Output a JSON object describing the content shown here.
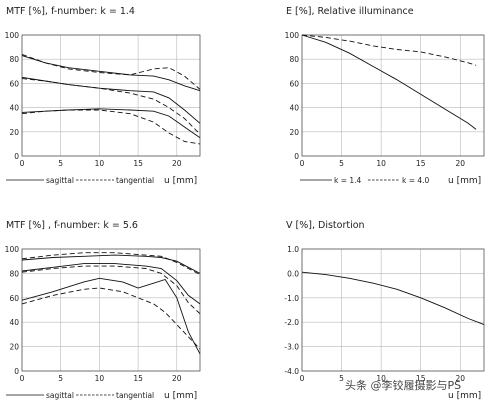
{
  "chart_data": [
    {
      "id": "mtf14",
      "type": "line",
      "title": "MTF [%], f-number: k = 1.4",
      "xlabel": "u [mm]",
      "xlim": [
        0,
        23
      ],
      "ylim": [
        0,
        100
      ],
      "xticks": [
        0,
        5,
        10,
        15,
        20
      ],
      "yticks": [
        0,
        20,
        40,
        60,
        80,
        100
      ],
      "legend": [
        {
          "label": "sagittal",
          "style": "solid"
        },
        {
          "label": "tangential",
          "style": "dashed"
        }
      ],
      "series": [
        {
          "style": "solid",
          "x": [
            0,
            3,
            6,
            10,
            14,
            17,
            19,
            21,
            23
          ],
          "y": [
            83,
            77,
            73,
            70,
            67,
            66,
            63,
            58,
            54
          ]
        },
        {
          "style": "dashed",
          "x": [
            0,
            3,
            6,
            10,
            14,
            17,
            19,
            21,
            23
          ],
          "y": [
            84,
            77,
            72,
            69,
            67,
            72,
            73,
            66,
            55
          ]
        },
        {
          "style": "solid",
          "x": [
            0,
            3,
            6,
            10,
            14,
            17,
            19,
            21,
            23
          ],
          "y": [
            65,
            62,
            59,
            56,
            54,
            53,
            48,
            38,
            27
          ]
        },
        {
          "style": "dashed",
          "x": [
            0,
            3,
            6,
            10,
            14,
            17,
            19,
            21,
            23
          ],
          "y": [
            64,
            62,
            59,
            56,
            52,
            47,
            40,
            31,
            18
          ]
        },
        {
          "style": "solid",
          "x": [
            0,
            3,
            6,
            10,
            14,
            17,
            19,
            21,
            23
          ],
          "y": [
            36,
            37,
            38,
            39,
            38,
            37,
            33,
            24,
            15
          ]
        },
        {
          "style": "dashed",
          "x": [
            0,
            3,
            6,
            10,
            14,
            17,
            19,
            21,
            23
          ],
          "y": [
            35,
            37,
            38,
            38,
            35,
            28,
            19,
            12,
            10
          ]
        }
      ]
    },
    {
      "id": "illum",
      "type": "line",
      "title": "E [%], Relative illuminance",
      "xlabel": "u [mm]",
      "xlim": [
        0,
        23
      ],
      "ylim": [
        0,
        100
      ],
      "xticks": [
        0,
        5,
        10,
        15,
        20
      ],
      "yticks": [
        0,
        20,
        40,
        60,
        80,
        100
      ],
      "legend": [
        {
          "label": "k = 1.4",
          "style": "solid"
        },
        {
          "label": "k = 4.0",
          "style": "dashed"
        }
      ],
      "series": [
        {
          "style": "solid",
          "x": [
            0,
            3,
            6,
            9,
            12,
            15,
            18,
            21,
            22
          ],
          "y": [
            100,
            94,
            85,
            74,
            63,
            51,
            39,
            27,
            22
          ]
        },
        {
          "style": "dashed",
          "x": [
            0,
            3,
            6,
            9,
            12,
            15,
            18,
            21,
            22
          ],
          "y": [
            100,
            98,
            95,
            91,
            88,
            86,
            82,
            77,
            75
          ]
        }
      ]
    },
    {
      "id": "mtf56",
      "type": "line",
      "title": "MTF [%] , f-number: k = 5.6",
      "xlabel": "u [mm]",
      "xlim": [
        0,
        23
      ],
      "ylim": [
        0,
        100
      ],
      "xticks": [
        0,
        5,
        10,
        15,
        20
      ],
      "yticks": [
        0,
        20,
        40,
        60,
        80,
        100
      ],
      "legend": [
        {
          "label": "sagittal",
          "style": "solid"
        },
        {
          "label": "tangential",
          "style": "dashed"
        }
      ],
      "series": [
        {
          "style": "solid",
          "x": [
            0,
            4,
            8,
            12,
            16,
            18,
            20,
            21.5,
            23
          ],
          "y": [
            91,
            93,
            94,
            95,
            94,
            93,
            90,
            85,
            80
          ]
        },
        {
          "style": "dashed",
          "x": [
            0,
            4,
            8,
            12,
            16,
            18,
            20,
            21.5,
            23
          ],
          "y": [
            92,
            95,
            97,
            97,
            95,
            94,
            89,
            84,
            79
          ]
        },
        {
          "style": "solid",
          "x": [
            0,
            4,
            8,
            12,
            16,
            18,
            20,
            21.5,
            23
          ],
          "y": [
            82,
            85,
            88,
            88,
            86,
            84,
            74,
            62,
            55
          ]
        },
        {
          "style": "dashed",
          "x": [
            0,
            4,
            8,
            12,
            16,
            18,
            20,
            21.5,
            23
          ],
          "y": [
            81,
            84,
            86,
            86,
            84,
            80,
            70,
            56,
            47
          ]
        },
        {
          "style": "solid",
          "x": [
            0,
            4,
            8,
            10,
            13,
            15,
            17,
            18.5,
            20,
            21.5,
            23
          ],
          "y": [
            58,
            65,
            73,
            76,
            73,
            68,
            72,
            75,
            60,
            32,
            14
          ]
        },
        {
          "style": "dashed",
          "x": [
            0,
            4,
            8,
            10,
            13,
            15,
            17,
            18.5,
            20,
            21.5,
            23
          ],
          "y": [
            55,
            62,
            67,
            68,
            65,
            60,
            55,
            48,
            38,
            28,
            18
          ]
        }
      ]
    },
    {
      "id": "dist",
      "type": "line",
      "title": "V [%], Distortion",
      "xlabel": "u [mm]",
      "xlim": [
        0,
        23
      ],
      "ylim": [
        -4,
        1
      ],
      "xticks": [
        0,
        5,
        10,
        15,
        20
      ],
      "yticks": [
        -4.0,
        -3.0,
        -2.0,
        -1.0,
        0.0,
        1.0
      ],
      "legend": [],
      "series": [
        {
          "style": "solid",
          "x": [
            0,
            3,
            6,
            9,
            12,
            15,
            18,
            21,
            23
          ],
          "y": [
            0.05,
            -0.05,
            -0.2,
            -0.4,
            -0.65,
            -1.0,
            -1.4,
            -1.85,
            -2.1
          ]
        }
      ]
    }
  ],
  "watermark": "头条 @李铰履摄影与PS"
}
